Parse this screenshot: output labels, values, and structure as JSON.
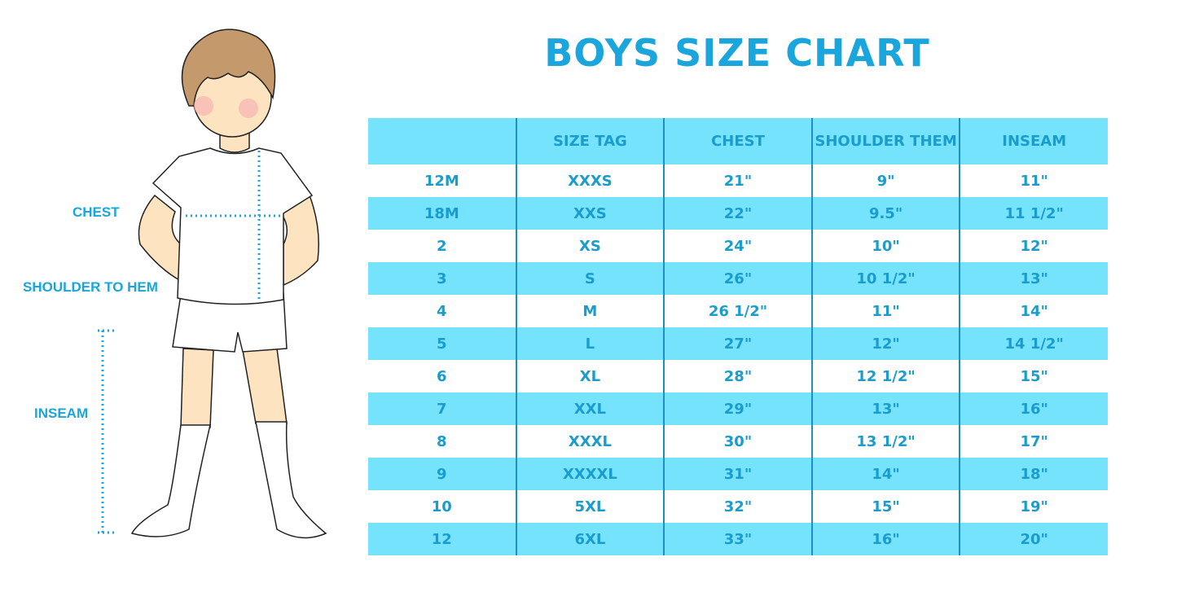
{
  "title": "BOYS SIZE CHART",
  "figure_labels": {
    "chest": "CHEST",
    "shoulder_to_hem": "SHOULDER TO HEM",
    "inseam": "INSEAM"
  },
  "colors": {
    "accent": "#1aa6dc",
    "row_highlight": "#76e3fc",
    "divider": "#1e8fc2"
  },
  "table": {
    "headers": [
      "",
      "SIZE TAG",
      "CHEST",
      "SHOULDER THEM",
      "INSEAM"
    ],
    "rows": [
      [
        "12M",
        "XXXS",
        "21\"",
        "9\"",
        "11\""
      ],
      [
        "18M",
        "XXS",
        "22\"",
        "9.5\"",
        "11 1/2\""
      ],
      [
        "2",
        "XS",
        "24\"",
        "10\"",
        "12\""
      ],
      [
        "3",
        "S",
        "26\"",
        "10 1/2\"",
        "13\""
      ],
      [
        "4",
        "M",
        "26 1/2\"",
        "11\"",
        "14\""
      ],
      [
        "5",
        "L",
        "27\"",
        "12\"",
        "14 1/2\""
      ],
      [
        "6",
        "XL",
        "28\"",
        "12 1/2\"",
        "15\""
      ],
      [
        "7",
        "XXL",
        "29\"",
        "13\"",
        "16\""
      ],
      [
        "8",
        "XXXL",
        "30\"",
        "13 1/2\"",
        "17\""
      ],
      [
        "9",
        "XXXXL",
        "31\"",
        "14\"",
        "18\""
      ],
      [
        "10",
        "5XL",
        "32\"",
        "15\"",
        "19\""
      ],
      [
        "12",
        "6XL",
        "33\"",
        "16\"",
        "20\""
      ]
    ]
  }
}
